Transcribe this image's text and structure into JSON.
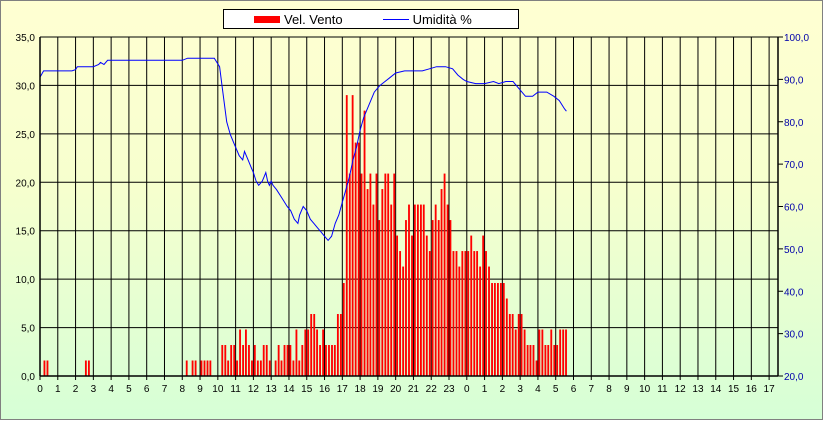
{
  "chart_data": {
    "type": "bar+line",
    "legend": [
      "Vel. Vento",
      "Umidità %"
    ],
    "x_tick_labels": [
      "0",
      "1",
      "2",
      "3",
      "4",
      "5",
      "6",
      "7",
      "8",
      "9",
      "10",
      "11",
      "12",
      "13",
      "14",
      "15",
      "16",
      "17",
      "18",
      "19",
      "20",
      "21",
      "22",
      "23",
      "0",
      "1",
      "2",
      "3",
      "4",
      "5",
      "6",
      "7",
      "8",
      "9",
      "10",
      "11",
      "12",
      "13",
      "14",
      "15",
      "16",
      "17"
    ],
    "y_left": {
      "range": [
        0,
        35
      ],
      "tick_labels": [
        "0,0",
        "5,0",
        "10,0",
        "15,0",
        "20,0",
        "25,0",
        "30,0",
        "35,0"
      ]
    },
    "y_right": {
      "range": [
        20,
        100
      ],
      "tick_labels": [
        "20,0",
        "30,0",
        "40,0",
        "50,0",
        "60,0",
        "70,0",
        "80,0",
        "90,0",
        "100,0"
      ]
    },
    "x_range_hours": [
      0,
      41.5
    ],
    "series": [
      {
        "name": "Vel. Vento",
        "axis": "left",
        "color": "#ff0000",
        "points": [
          [
            0.25,
            1.6
          ],
          [
            0.42,
            1.6
          ],
          [
            2.58,
            1.6
          ],
          [
            2.75,
            1.6
          ],
          [
            8.25,
            1.6
          ],
          [
            8.58,
            1.6
          ],
          [
            8.75,
            1.6
          ],
          [
            9.08,
            1.6
          ],
          [
            9.25,
            1.6
          ],
          [
            9.42,
            1.6
          ],
          [
            9.58,
            1.6
          ],
          [
            10.25,
            3.2
          ],
          [
            10.42,
            3.2
          ],
          [
            10.58,
            1.6
          ],
          [
            10.75,
            3.2
          ],
          [
            10.92,
            3.2
          ],
          [
            11.08,
            1.6
          ],
          [
            11.25,
            4.8
          ],
          [
            11.42,
            3.2
          ],
          [
            11.58,
            4.8
          ],
          [
            11.75,
            3.2
          ],
          [
            11.92,
            1.6
          ],
          [
            12.08,
            3.2
          ],
          [
            12.25,
            1.6
          ],
          [
            12.42,
            1.6
          ],
          [
            12.58,
            3.2
          ],
          [
            12.75,
            3.2
          ],
          [
            12.92,
            1.6
          ],
          [
            13.25,
            1.6
          ],
          [
            13.42,
            3.2
          ],
          [
            13.58,
            1.6
          ],
          [
            13.75,
            3.2
          ],
          [
            13.92,
            3.2
          ],
          [
            14.08,
            3.2
          ],
          [
            14.25,
            1.6
          ],
          [
            14.42,
            4.8
          ],
          [
            14.58,
            1.6
          ],
          [
            14.75,
            3.2
          ],
          [
            14.92,
            4.8
          ],
          [
            15.08,
            4.8
          ],
          [
            15.25,
            6.4
          ],
          [
            15.42,
            6.4
          ],
          [
            15.58,
            4.8
          ],
          [
            15.75,
            3.2
          ],
          [
            15.92,
            4.8
          ],
          [
            16.08,
            3.2
          ],
          [
            16.25,
            3.2
          ],
          [
            16.42,
            3.2
          ],
          [
            16.58,
            3.2
          ],
          [
            16.75,
            6.4
          ],
          [
            16.92,
            6.4
          ],
          [
            17.08,
            9.6
          ],
          [
            17.25,
            29.0
          ],
          [
            17.42,
            20.9
          ],
          [
            17.58,
            29.0
          ],
          [
            17.75,
            24.1
          ],
          [
            17.92,
            24.1
          ],
          [
            18.08,
            20.9
          ],
          [
            18.25,
            27.4
          ],
          [
            18.42,
            19.3
          ],
          [
            18.58,
            20.9
          ],
          [
            18.75,
            17.7
          ],
          [
            18.92,
            20.9
          ],
          [
            19.08,
            16.1
          ],
          [
            19.25,
            19.3
          ],
          [
            19.42,
            20.9
          ],
          [
            19.58,
            20.9
          ],
          [
            19.75,
            17.7
          ],
          [
            19.92,
            20.9
          ],
          [
            20.08,
            14.5
          ],
          [
            20.25,
            12.9
          ],
          [
            20.42,
            11.3
          ],
          [
            20.58,
            16.1
          ],
          [
            20.75,
            17.7
          ],
          [
            20.92,
            14.5
          ],
          [
            21.08,
            17.7
          ],
          [
            21.25,
            17.7
          ],
          [
            21.42,
            17.7
          ],
          [
            21.58,
            17.7
          ],
          [
            21.75,
            14.5
          ],
          [
            21.92,
            12.9
          ],
          [
            22.08,
            16.1
          ],
          [
            22.25,
            17.7
          ],
          [
            22.42,
            16.1
          ],
          [
            22.58,
            19.3
          ],
          [
            22.75,
            20.9
          ],
          [
            22.92,
            17.7
          ],
          [
            23.08,
            16.1
          ],
          [
            23.25,
            12.9
          ],
          [
            23.42,
            12.9
          ],
          [
            23.58,
            11.3
          ],
          [
            23.75,
            12.9
          ],
          [
            23.92,
            12.9
          ],
          [
            24.08,
            12.9
          ],
          [
            24.25,
            14.5
          ],
          [
            24.42,
            12.9
          ],
          [
            24.58,
            12.9
          ],
          [
            24.75,
            11.3
          ],
          [
            24.92,
            14.5
          ],
          [
            25.08,
            12.9
          ],
          [
            25.25,
            11.3
          ],
          [
            25.42,
            9.6
          ],
          [
            25.58,
            9.6
          ],
          [
            25.75,
            9.6
          ],
          [
            25.92,
            9.6
          ],
          [
            26.08,
            9.6
          ],
          [
            26.25,
            8.0
          ],
          [
            26.42,
            6.4
          ],
          [
            26.58,
            6.4
          ],
          [
            26.75,
            4.8
          ],
          [
            26.92,
            6.4
          ],
          [
            27.08,
            6.4
          ],
          [
            27.25,
            4.8
          ],
          [
            27.42,
            3.2
          ],
          [
            27.58,
            3.2
          ],
          [
            27.75,
            3.2
          ],
          [
            27.92,
            1.6
          ],
          [
            28.08,
            4.8
          ],
          [
            28.25,
            4.8
          ],
          [
            28.42,
            3.2
          ],
          [
            28.58,
            3.2
          ],
          [
            28.75,
            4.8
          ],
          [
            28.92,
            3.2
          ],
          [
            29.08,
            3.2
          ],
          [
            29.25,
            4.8
          ],
          [
            29.42,
            4.8
          ],
          [
            29.58,
            4.8
          ]
        ]
      },
      {
        "name": "Umidità %",
        "axis": "right",
        "color": "#0000ff",
        "points": [
          [
            0.0,
            90.5
          ],
          [
            0.2,
            92.0
          ],
          [
            0.5,
            92.0
          ],
          [
            1.0,
            92.0
          ],
          [
            1.8,
            92.0
          ],
          [
            2.0,
            92.3
          ],
          [
            2.1,
            93.0
          ],
          [
            2.5,
            93.0
          ],
          [
            3.0,
            93.0
          ],
          [
            3.3,
            93.5
          ],
          [
            3.4,
            94.0
          ],
          [
            3.6,
            93.5
          ],
          [
            3.8,
            94.5
          ],
          [
            4.5,
            94.5
          ],
          [
            6.0,
            94.5
          ],
          [
            8.0,
            94.5
          ],
          [
            8.3,
            95.0
          ],
          [
            9.0,
            95.0
          ],
          [
            9.8,
            95.0
          ],
          [
            10.1,
            93.0
          ],
          [
            10.25,
            88.0
          ],
          [
            10.5,
            80.0
          ],
          [
            10.7,
            77.0
          ],
          [
            10.9,
            75.0
          ],
          [
            11.0,
            74.0
          ],
          [
            11.2,
            72.0
          ],
          [
            11.4,
            71.0
          ],
          [
            11.5,
            73.0
          ],
          [
            11.7,
            71.0
          ],
          [
            11.9,
            69.0
          ],
          [
            12.0,
            68.0
          ],
          [
            12.15,
            66.0
          ],
          [
            12.3,
            65.0
          ],
          [
            12.5,
            66.0
          ],
          [
            12.6,
            67.0
          ],
          [
            12.7,
            68.0
          ],
          [
            12.8,
            66.0
          ],
          [
            12.9,
            65.0
          ],
          [
            13.0,
            66.0
          ],
          [
            13.1,
            65.0
          ],
          [
            13.3,
            64.0
          ],
          [
            13.6,
            62.0
          ],
          [
            13.9,
            60.0
          ],
          [
            14.1,
            59.0
          ],
          [
            14.3,
            57.0
          ],
          [
            14.5,
            56.0
          ],
          [
            14.6,
            58.0
          ],
          [
            14.8,
            60.0
          ],
          [
            15.0,
            59.0
          ],
          [
            15.2,
            57.0
          ],
          [
            15.4,
            56.0
          ],
          [
            15.6,
            55.0
          ],
          [
            15.8,
            54.0
          ],
          [
            16.0,
            53.0
          ],
          [
            16.2,
            52.0
          ],
          [
            16.4,
            53.0
          ],
          [
            16.6,
            56.0
          ],
          [
            16.8,
            58.0
          ],
          [
            17.0,
            61.0
          ],
          [
            17.2,
            64.0
          ],
          [
            17.4,
            67.0
          ],
          [
            17.6,
            71.0
          ],
          [
            17.8,
            74.0
          ],
          [
            18.0,
            78.0
          ],
          [
            18.2,
            81.0
          ],
          [
            18.5,
            84.0
          ],
          [
            18.8,
            87.0
          ],
          [
            19.1,
            88.5
          ],
          [
            19.4,
            89.5
          ],
          [
            19.7,
            90.5
          ],
          [
            20.0,
            91.5
          ],
          [
            20.5,
            92.0
          ],
          [
            21.0,
            92.0
          ],
          [
            21.5,
            92.0
          ],
          [
            21.9,
            92.5
          ],
          [
            22.3,
            93.0
          ],
          [
            22.8,
            93.0
          ],
          [
            23.2,
            92.5
          ],
          [
            23.5,
            91.0
          ],
          [
            23.8,
            90.0
          ],
          [
            24.0,
            89.5
          ],
          [
            24.5,
            89.0
          ],
          [
            25.0,
            89.0
          ],
          [
            25.5,
            89.5
          ],
          [
            25.8,
            89.0
          ],
          [
            26.2,
            89.5
          ],
          [
            26.6,
            89.5
          ],
          [
            26.9,
            88.0
          ],
          [
            27.1,
            87.0
          ],
          [
            27.3,
            86.0
          ],
          [
            27.7,
            86.0
          ],
          [
            28.0,
            87.0
          ],
          [
            28.5,
            87.0
          ],
          [
            28.9,
            86.0
          ],
          [
            29.2,
            85.0
          ],
          [
            29.5,
            83.0
          ],
          [
            29.6,
            82.5
          ]
        ]
      }
    ]
  }
}
